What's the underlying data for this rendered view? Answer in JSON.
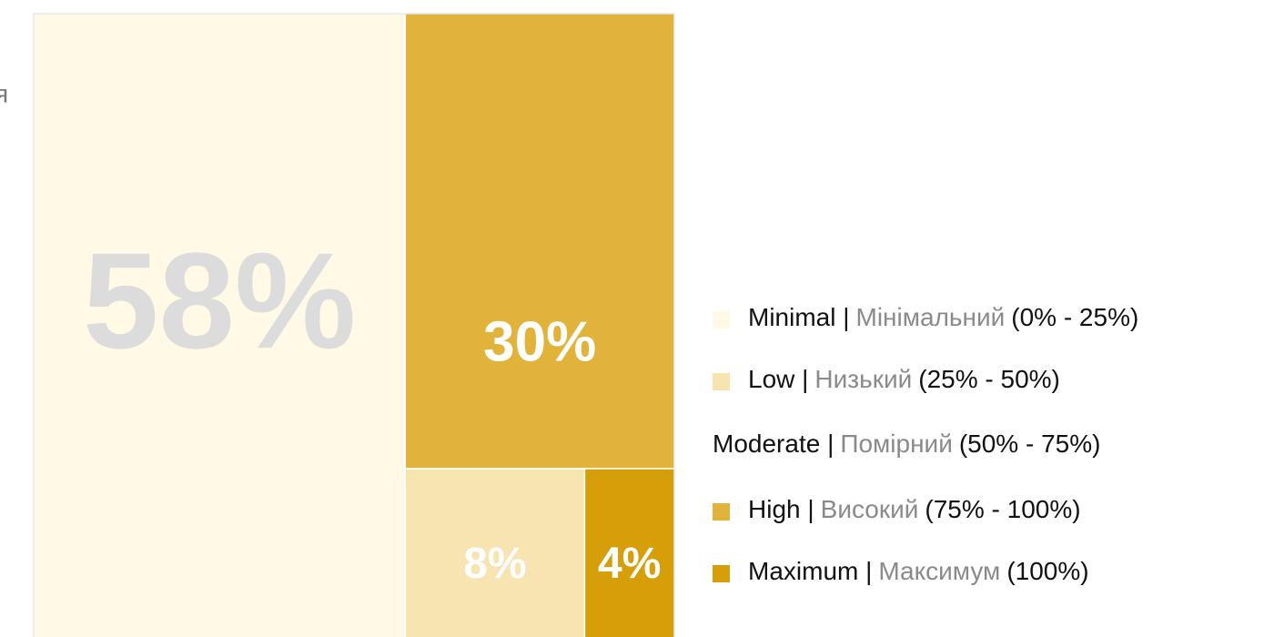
{
  "chart_data": {
    "type": "treemap",
    "annotation": "я",
    "categories": [
      "Minimal",
      "High",
      "Low",
      "Maximum"
    ],
    "values": [
      58,
      30,
      8,
      4
    ],
    "value_labels": [
      "58%",
      "30%",
      "8%",
      "4%"
    ],
    "colors": [
      "#fff9e6",
      "#e2b33a",
      "#f7e4b0",
      "#d69e08"
    ],
    "legend": [
      {
        "name": "Minimal |",
        "local": "Мінімальний",
        "range": "(0% - 25%)",
        "color": "#fff9e6"
      },
      {
        "name": "Low |",
        "local": "Низький",
        "range": "(25% - 50%)",
        "color": "#f7e4b0"
      },
      {
        "name": "Moderate |",
        "local": "Помірний",
        "range": "(50% - 75%)",
        "color": null
      },
      {
        "name": "High |",
        "local": "Високий",
        "range": "(75% - 100%)",
        "color": "#e2b33a"
      },
      {
        "name": "Maximum |",
        "local": "Максимум",
        "range": "(100%)",
        "color": "#d69e08"
      }
    ],
    "legend_position": "right"
  }
}
